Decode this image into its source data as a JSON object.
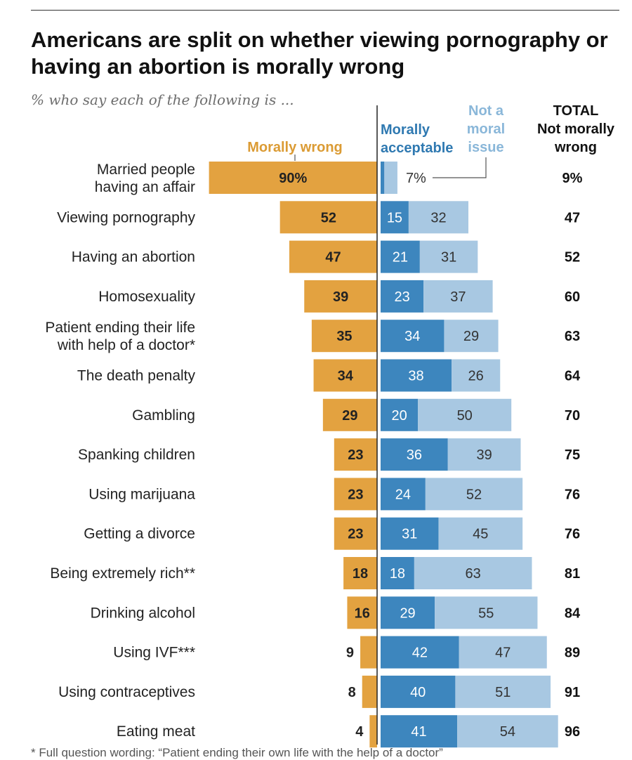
{
  "title": "Americans are split on whether viewing pornography or having an abortion is morally wrong",
  "subtitle": "% who say each of the following is ...",
  "footnote": "* Full question wording: “Patient ending their own life with the help of a doctor”",
  "colors": {
    "wrong": "#E3A240",
    "acceptable": "#3D86BE",
    "not_moral": "#A8C8E2",
    "wrong_label": "#DB9B34",
    "acceptable_label": "#2F79B1",
    "not_moral_label": "#8AB7D9"
  },
  "chart_data": {
    "type": "bar",
    "orientation": "horizontal",
    "stacked_diverging": true,
    "headers": {
      "wrong": "Morally wrong",
      "acceptable": [
        "Morally",
        "acceptable"
      ],
      "not_moral": [
        "Not a",
        "moral",
        "issue"
      ],
      "total": [
        "TOTAL",
        "Not morally",
        "wrong"
      ]
    },
    "categories": [
      [
        "Married people",
        "having an affair"
      ],
      [
        "Viewing pornography"
      ],
      [
        "Having an abortion"
      ],
      [
        "Homosexuality"
      ],
      [
        "Patient ending their life",
        "with help of a doctor*"
      ],
      [
        "The death penalty"
      ],
      [
        "Gambling"
      ],
      [
        "Spanking children"
      ],
      [
        "Using marijuana"
      ],
      [
        "Getting a divorce"
      ],
      [
        "Being extremely rich**"
      ],
      [
        "Drinking alcohol"
      ],
      [
        "Using IVF***"
      ],
      [
        "Using contraceptives"
      ],
      [
        "Eating meat"
      ]
    ],
    "series": [
      {
        "name": "Morally wrong",
        "values": [
          90,
          52,
          47,
          39,
          35,
          34,
          29,
          23,
          23,
          23,
          18,
          16,
          9,
          8,
          4
        ],
        "labels": [
          "90%",
          "52",
          "47",
          "39",
          "35",
          "34",
          "29",
          "23",
          "23",
          "23",
          "18",
          "16",
          "9",
          "8",
          "4"
        ]
      },
      {
        "name": "Morally acceptable",
        "values": [
          2,
          15,
          21,
          23,
          34,
          38,
          20,
          36,
          24,
          31,
          18,
          29,
          42,
          40,
          41
        ],
        "labels": [
          "",
          "15",
          "21",
          "23",
          "34",
          "38",
          "20",
          "36",
          "24",
          "31",
          "18",
          "29",
          "42",
          "40",
          "41"
        ]
      },
      {
        "name": "Not a moral issue",
        "values": [
          7,
          32,
          31,
          37,
          29,
          26,
          50,
          39,
          52,
          45,
          63,
          55,
          47,
          51,
          54
        ],
        "labels": [
          "7%",
          "32",
          "31",
          "37",
          "29",
          "26",
          "50",
          "39",
          "52",
          "45",
          "63",
          "55",
          "47",
          "51",
          "54"
        ]
      },
      {
        "name": "TOTAL Not morally wrong",
        "values": [
          9,
          47,
          52,
          60,
          63,
          64,
          70,
          75,
          76,
          76,
          81,
          84,
          89,
          91,
          96
        ],
        "labels": [
          "9%",
          "47",
          "52",
          "60",
          "63",
          "64",
          "70",
          "75",
          "76",
          "76",
          "81",
          "84",
          "89",
          "91",
          "96"
        ]
      }
    ],
    "xlim": [
      -90,
      96
    ]
  }
}
